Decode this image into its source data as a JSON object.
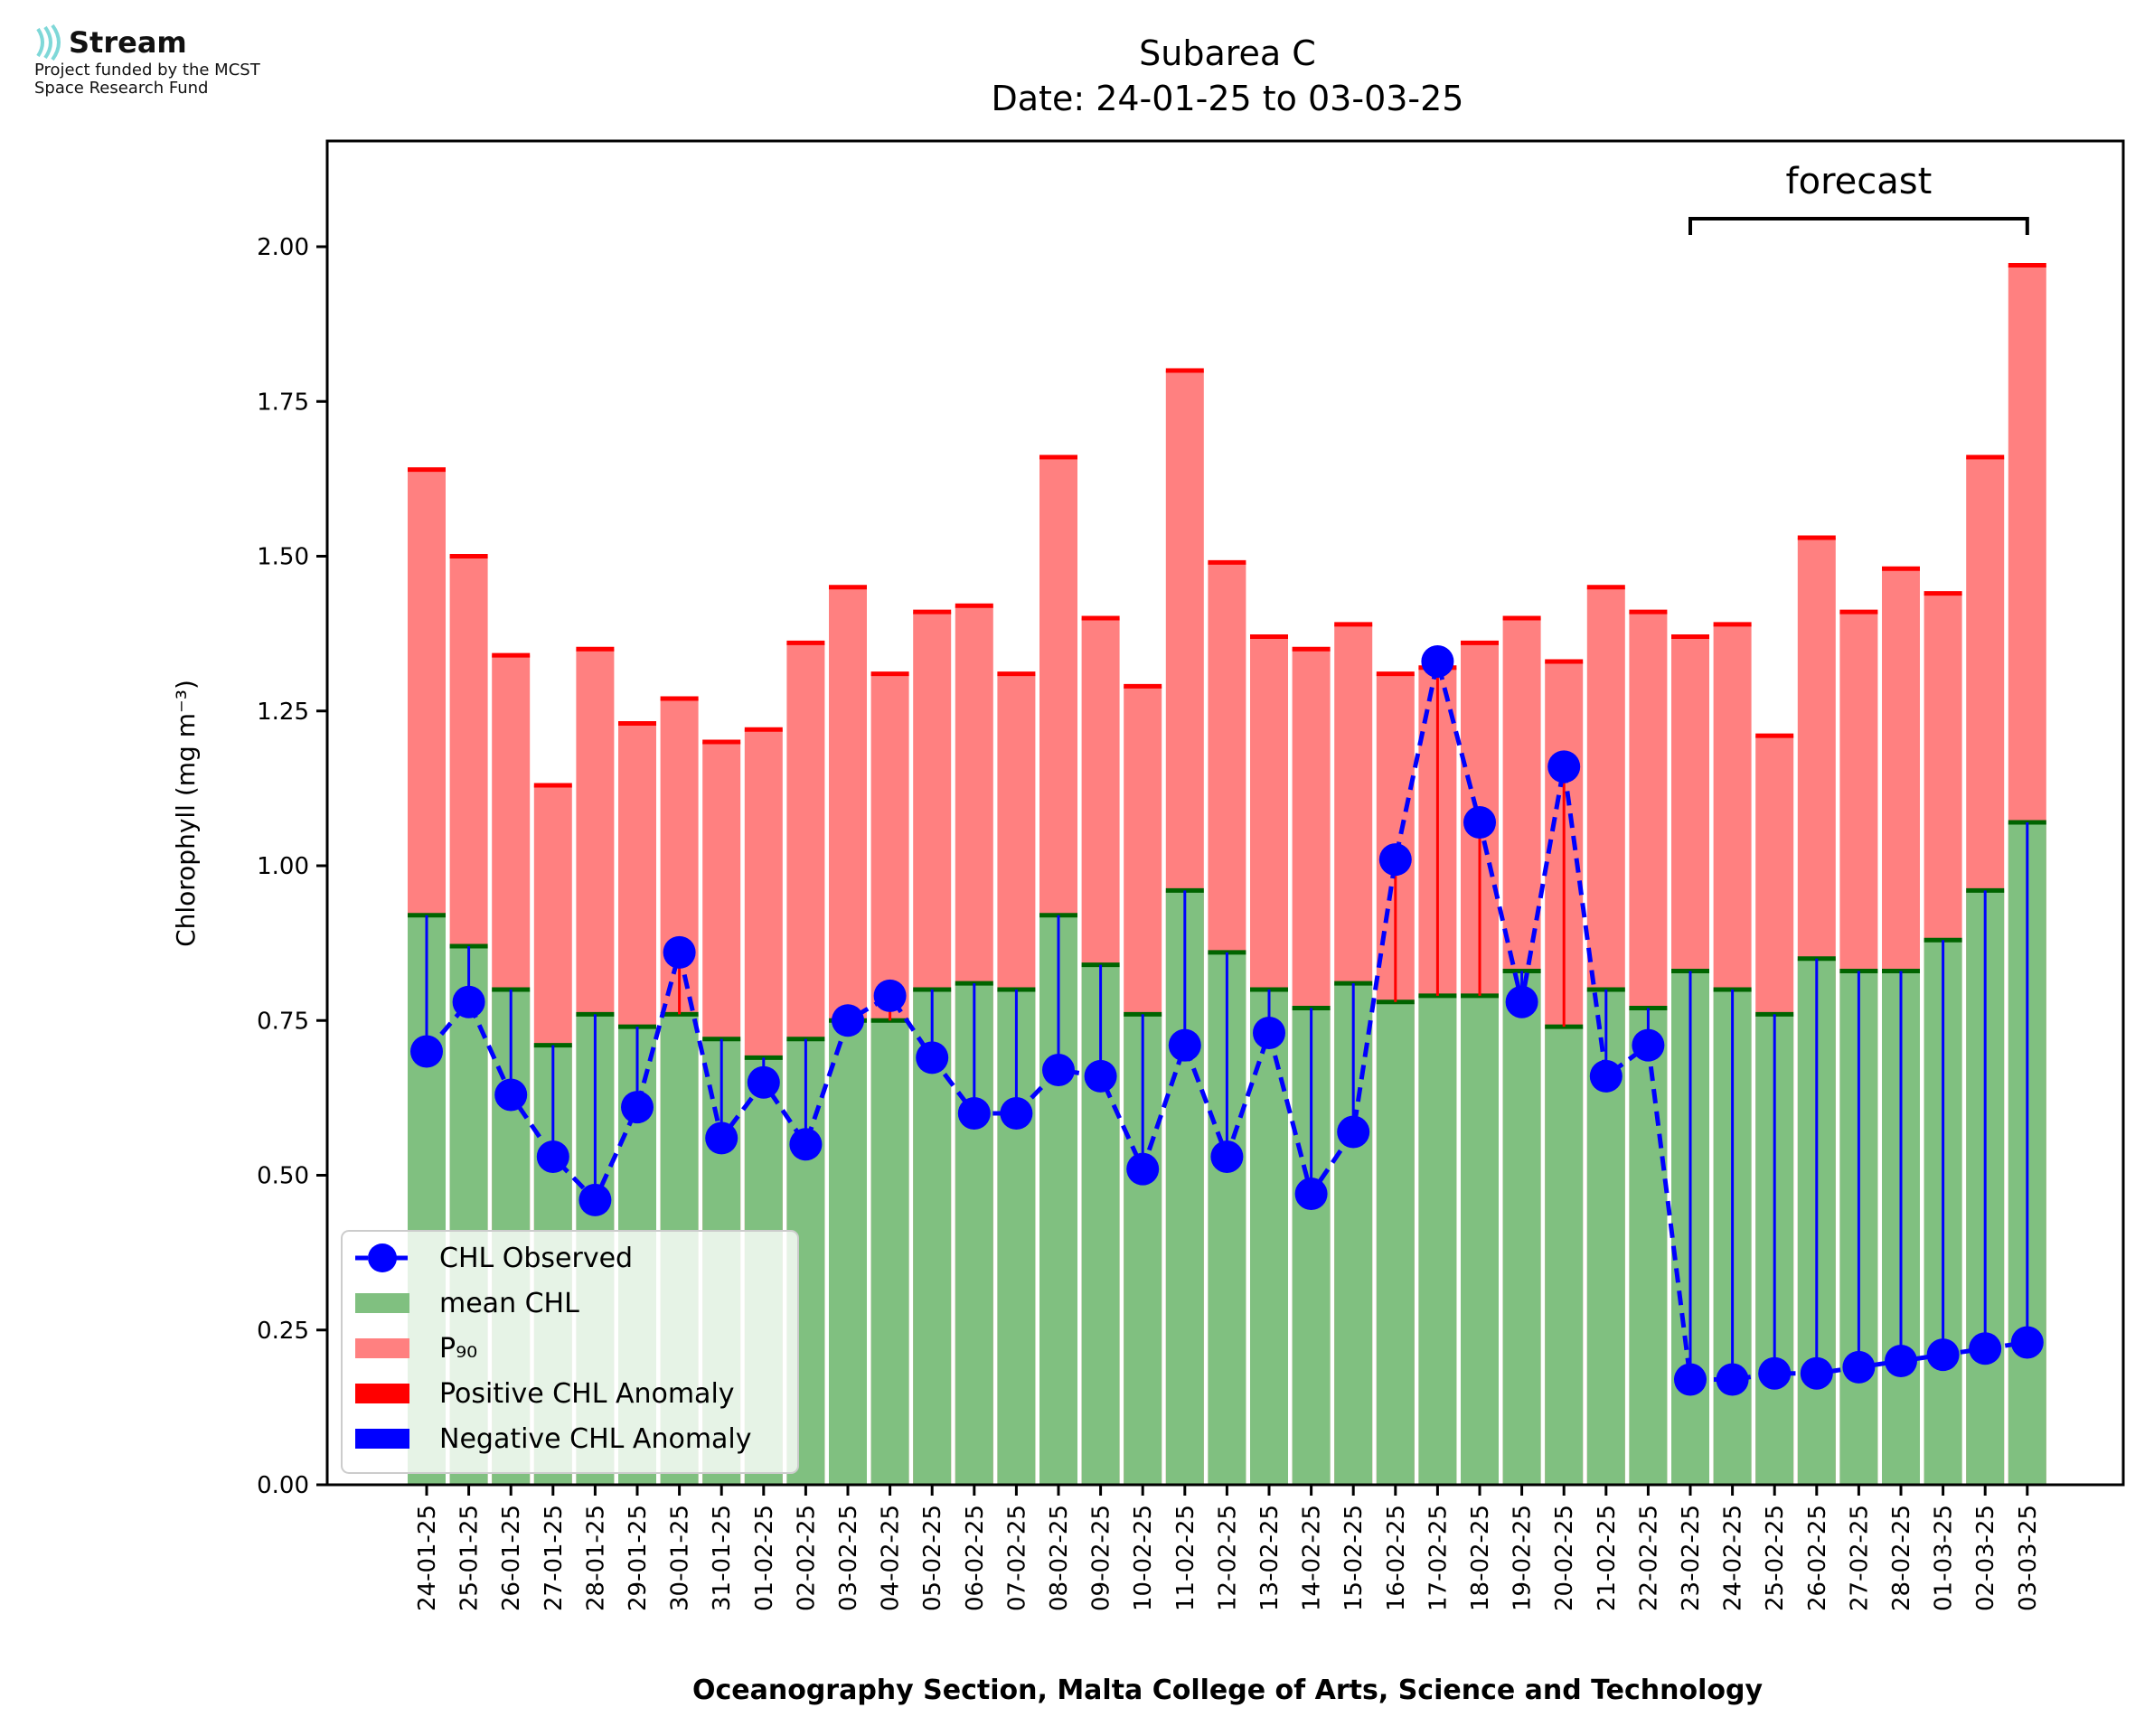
{
  "logo": {
    "icon": "stream-wave-icon",
    "name": "Stream",
    "line1": "Project funded by the MCST",
    "line2": "Space Research Fund"
  },
  "chart_data": {
    "type": "bar",
    "title": "Subarea C",
    "subtitle": "Date: 24-01-25 to 03-03-25",
    "xlabel": "Oceanography Section, Malta College of Arts, Science and Technology",
    "ylabel": "Chlorophyll (mg m⁻³)",
    "ylim": [
      0,
      2.165
    ],
    "yticks": [
      0.0,
      0.25,
      0.5,
      0.75,
      1.0,
      1.25,
      1.5,
      1.75,
      2.0
    ],
    "ytick_labels": [
      "0.00",
      "0.25",
      "0.50",
      "0.75",
      "1.00",
      "1.25",
      "1.50",
      "1.75",
      "2.00"
    ],
    "grid": false,
    "legend_position": "lower-left",
    "forecast_label": "forecast",
    "forecast_start": "23-02-25",
    "forecast_end": "03-03-25",
    "colors": {
      "mean": "#80c080",
      "mean_edge": "#006400",
      "p90": "#ff8080",
      "p90_edge": "#ff0000",
      "positive_anomaly": "#ff0000",
      "negative_anomaly": "#0000ff",
      "observed": "#0000ff"
    },
    "categories": [
      "24-01-25",
      "25-01-25",
      "26-01-25",
      "27-01-25",
      "28-01-25",
      "29-01-25",
      "30-01-25",
      "31-01-25",
      "01-02-25",
      "02-02-25",
      "03-02-25",
      "04-02-25",
      "05-02-25",
      "06-02-25",
      "07-02-25",
      "08-02-25",
      "09-02-25",
      "10-02-25",
      "11-02-25",
      "12-02-25",
      "13-02-25",
      "14-02-25",
      "15-02-25",
      "16-02-25",
      "17-02-25",
      "18-02-25",
      "19-02-25",
      "20-02-25",
      "21-02-25",
      "22-02-25",
      "23-02-25",
      "24-02-25",
      "25-02-25",
      "26-02-25",
      "27-02-25",
      "28-02-25",
      "01-03-25",
      "02-03-25",
      "03-03-25"
    ],
    "series": [
      {
        "name": "mean CHL",
        "values": [
          0.92,
          0.87,
          0.8,
          0.71,
          0.76,
          0.74,
          0.76,
          0.72,
          0.69,
          0.72,
          0.75,
          0.75,
          0.8,
          0.81,
          0.8,
          0.92,
          0.84,
          0.76,
          0.96,
          0.86,
          0.8,
          0.77,
          0.81,
          0.78,
          0.79,
          0.79,
          0.83,
          0.74,
          0.8,
          0.77,
          0.83,
          0.8,
          0.76,
          0.85,
          0.83,
          0.83,
          0.88,
          0.96,
          1.07
        ]
      },
      {
        "name": "P₉₀",
        "values": [
          1.64,
          1.5,
          1.34,
          1.13,
          1.35,
          1.23,
          1.27,
          1.2,
          1.22,
          1.36,
          1.45,
          1.31,
          1.41,
          1.42,
          1.31,
          1.66,
          1.4,
          1.29,
          1.8,
          1.49,
          1.37,
          1.35,
          1.39,
          1.31,
          1.32,
          1.36,
          1.4,
          1.33,
          1.45,
          1.41,
          1.37,
          1.39,
          1.21,
          1.53,
          1.41,
          1.48,
          1.44,
          1.66,
          1.97
        ]
      },
      {
        "name": "CHL Observed",
        "values": [
          0.7,
          0.78,
          0.63,
          0.53,
          0.46,
          0.61,
          0.86,
          0.56,
          0.65,
          0.55,
          0.75,
          0.79,
          0.69,
          0.6,
          0.6,
          0.67,
          0.66,
          0.51,
          0.71,
          0.53,
          0.73,
          0.47,
          0.57,
          1.01,
          1.33,
          1.07,
          0.78,
          1.16,
          0.66,
          0.71,
          0.17,
          0.17,
          0.18,
          0.18,
          0.19,
          0.2,
          0.21,
          0.22,
          0.23
        ]
      }
    ],
    "legend": [
      {
        "label": "CHL Observed",
        "kind": "line-marker"
      },
      {
        "label": "mean CHL",
        "kind": "patch-mean"
      },
      {
        "label": "P₉₀",
        "kind": "patch-p90"
      },
      {
        "label": "Positive CHL Anomaly",
        "kind": "patch-pos"
      },
      {
        "label": "Negative CHL Anomaly",
        "kind": "patch-neg"
      }
    ]
  }
}
